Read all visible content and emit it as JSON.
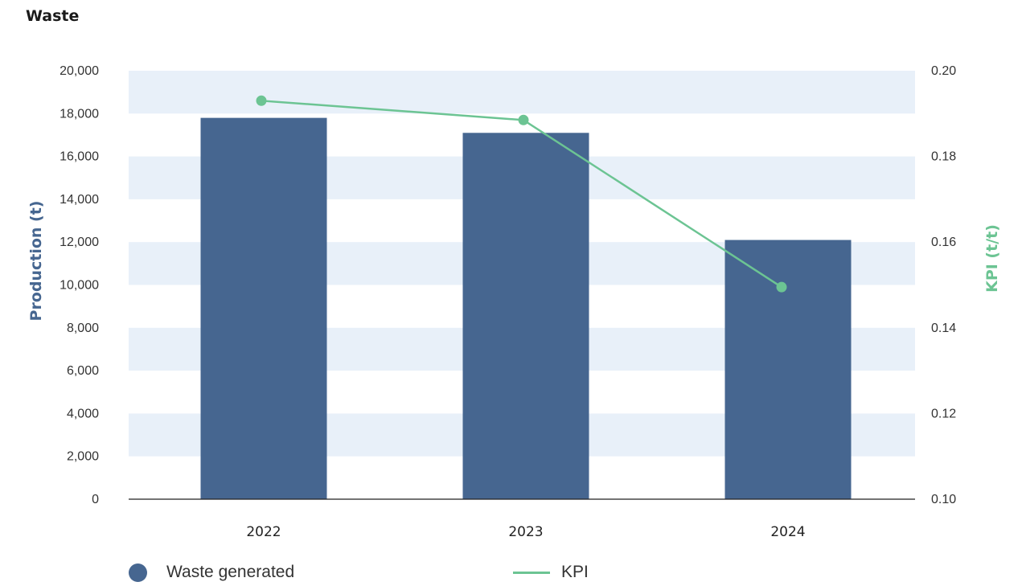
{
  "title": "Waste",
  "colors": {
    "bar": "#466690",
    "kpi": "#6cc493",
    "band": "#e8f0f9",
    "axis": "#222222"
  },
  "chart_data": {
    "type": "bar",
    "categories": [
      "2022",
      "2023",
      "2024"
    ],
    "series": [
      {
        "name": "Waste generated",
        "type": "bar",
        "axis": "left",
        "values": [
          17800,
          17100,
          12100
        ]
      },
      {
        "name": "KPI",
        "type": "line",
        "axis": "right",
        "values": [
          0.193,
          0.1885,
          0.1495
        ]
      }
    ],
    "ylabel": "Production (t)",
    "y2label": "KPI (t/t)",
    "ylim": [
      0,
      20000
    ],
    "y2lim": [
      0.1,
      0.2
    ],
    "yticks": [
      "0",
      "2,000",
      "4,000",
      "6,000",
      "8,000",
      "10,000",
      "12,000",
      "14,000",
      "16,000",
      "18,000",
      "20,000"
    ],
    "y2ticks": [
      "0.10",
      "0.12",
      "0.14",
      "0.16",
      "0.18",
      "0.20"
    ],
    "grid": "alternating horizontal bands",
    "legend": "bottom"
  }
}
